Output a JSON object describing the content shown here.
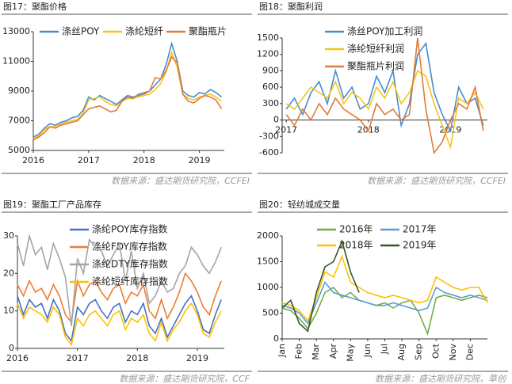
{
  "chart_data": [
    {
      "type": "line",
      "title": "图17：聚酯价格",
      "source": "数据来源：盛达期货研究院，CCFEI",
      "x": [
        2016.0,
        2016.1,
        2016.2,
        2016.3,
        2016.4,
        2016.5,
        2016.6,
        2016.7,
        2016.8,
        2016.9,
        2017.0,
        2017.1,
        2017.2,
        2017.3,
        2017.4,
        2017.5,
        2017.6,
        2017.7,
        2017.8,
        2017.9,
        2018.0,
        2018.1,
        2018.2,
        2018.3,
        2018.4,
        2018.5,
        2018.6,
        2018.7,
        2018.8,
        2018.9,
        2019.0,
        2019.1,
        2019.2,
        2019.3,
        2019.4
      ],
      "xlim": [
        2016.0,
        2019.45
      ],
      "xticks": [
        2016,
        2017,
        2018,
        2019
      ],
      "ylim": [
        5000,
        13000
      ],
      "yticks": [
        5000,
        7000,
        9000,
        11000,
        13000
      ],
      "series": [
        {
          "name": "涤丝POY",
          "color": "#4a8bd0",
          "values": [
            5900,
            6100,
            6500,
            6800,
            6700,
            6900,
            7000,
            7200,
            7300,
            7700,
            8600,
            8400,
            8700,
            8500,
            8300,
            8100,
            8400,
            8700,
            8600,
            8700,
            8800,
            9000,
            9400,
            9800,
            10800,
            12200,
            11000,
            9000,
            8700,
            8600,
            8900,
            8800,
            9100,
            8900,
            8600
          ]
        },
        {
          "name": "涤纶短纤",
          "color": "#f5c518",
          "values": [
            5800,
            6000,
            6400,
            6600,
            6600,
            6800,
            6900,
            7000,
            7100,
            7500,
            8400,
            8500,
            8600,
            8300,
            8100,
            8000,
            8300,
            8500,
            8500,
            8600,
            8700,
            8800,
            9100,
            9500,
            10300,
            11600,
            10600,
            8800,
            8500,
            8400,
            8600,
            8700,
            8800,
            8600,
            8300
          ]
        },
        {
          "name": "聚酯瓶片",
          "color": "#e07b39",
          "values": [
            5700,
            5900,
            6200,
            6600,
            6500,
            6700,
            6800,
            6900,
            7000,
            7400,
            7800,
            7900,
            8000,
            7800,
            7600,
            7700,
            8300,
            8600,
            8500,
            8800,
            8900,
            9000,
            9900,
            9800,
            10400,
            11300,
            10900,
            8800,
            8300,
            8200,
            8500,
            8700,
            8600,
            8400,
            7800
          ]
        }
      ]
    },
    {
      "type": "line",
      "title": "图18：聚酯利润",
      "source": "数据来源：盛达期货研究院，CCFEI",
      "x": [
        2017.0,
        2017.1,
        2017.2,
        2017.3,
        2017.4,
        2017.5,
        2017.6,
        2017.7,
        2017.8,
        2017.9,
        2018.0,
        2018.1,
        2018.2,
        2018.3,
        2018.4,
        2018.5,
        2018.6,
        2018.7,
        2018.8,
        2018.9,
        2019.0,
        2019.1,
        2019.2,
        2019.3,
        2019.4
      ],
      "xlim": [
        2016.95,
        2019.45
      ],
      "xticks": [
        2017,
        2018,
        2019
      ],
      "ylim": [
        -600,
        1500
      ],
      "yticks": [
        -600,
        -300,
        0,
        300,
        600,
        900,
        1200,
        1500
      ],
      "series": [
        {
          "name": "涤丝POY加工利润",
          "color": "#4a8bd0",
          "values": [
            200,
            400,
            100,
            500,
            700,
            300,
            900,
            400,
            600,
            200,
            300,
            800,
            500,
            900,
            -100,
            300,
            1200,
            1400,
            500,
            100,
            -200,
            600,
            300,
            400,
            -100
          ]
        },
        {
          "name": "涤纶短纤利润",
          "color": "#f5c518",
          "values": [
            300,
            200,
            400,
            600,
            500,
            400,
            700,
            300,
            500,
            400,
            200,
            600,
            400,
            700,
            300,
            500,
            900,
            800,
            300,
            -100,
            -500,
            400,
            300,
            500,
            200
          ]
        },
        {
          "name": "聚酯瓶片利润",
          "color": "#e07b39",
          "values": [
            100,
            -100,
            200,
            0,
            300,
            100,
            400,
            200,
            100,
            0,
            -200,
            300,
            100,
            200,
            0,
            100,
            1500,
            200,
            -600,
            -400,
            0,
            300,
            200,
            600,
            -200
          ]
        }
      ]
    },
    {
      "type": "line",
      "title": "图19：聚酯工厂产品库存",
      "source": "数据来源：盛达期货研究院，CCF",
      "x": [
        2016.0,
        2016.1,
        2016.2,
        2016.3,
        2016.4,
        2016.5,
        2016.6,
        2016.7,
        2016.8,
        2016.9,
        2017.0,
        2017.1,
        2017.2,
        2017.3,
        2017.4,
        2017.5,
        2017.6,
        2017.7,
        2017.8,
        2017.9,
        2018.0,
        2018.1,
        2018.2,
        2018.3,
        2018.4,
        2018.5,
        2018.6,
        2018.7,
        2018.8,
        2018.9,
        2019.0,
        2019.1,
        2019.2,
        2019.3,
        2019.4
      ],
      "xlim": [
        2016.0,
        2019.45
      ],
      "xticks": [
        2016,
        2017,
        2018,
        2019
      ],
      "ylim": [
        0,
        30
      ],
      "yticks": [
        0,
        10,
        20,
        30
      ],
      "series": [
        {
          "name": "涤纶POY库存指数",
          "color": "#4472c4",
          "values": [
            14,
            9,
            13,
            11,
            12,
            8,
            13,
            10,
            4,
            2,
            11,
            9,
            12,
            13,
            10,
            8,
            11,
            12,
            7,
            10,
            9,
            12,
            6,
            4,
            8,
            3,
            6,
            9,
            12,
            14,
            10,
            5,
            4,
            9,
            13
          ]
        },
        {
          "name": "涤纶FDY库存指数",
          "color": "#ed7d31",
          "values": [
            17,
            14,
            18,
            15,
            16,
            13,
            17,
            14,
            9,
            7,
            18,
            14,
            17,
            18,
            15,
            13,
            16,
            17,
            12,
            15,
            14,
            17,
            10,
            8,
            13,
            8,
            11,
            15,
            20,
            18,
            15,
            11,
            9,
            14,
            18
          ]
        },
        {
          "name": "涤纶DTY库存指数",
          "color": "#a5a5a5",
          "values": [
            28,
            22,
            30,
            25,
            27,
            21,
            28,
            24,
            19,
            6,
            24,
            20,
            29,
            27,
            26,
            22,
            25,
            28,
            18,
            26,
            16,
            20,
            12,
            14,
            18,
            15,
            16,
            20,
            22,
            27,
            25,
            22,
            20,
            23,
            27
          ]
        },
        {
          "name": "涤纶短纤库存指数",
          "color": "#ffc000",
          "values": [
            12,
            8,
            11,
            10,
            9,
            7,
            11,
            9,
            3,
            1,
            8,
            6,
            9,
            10,
            8,
            6,
            9,
            10,
            5,
            8,
            7,
            9,
            4,
            2,
            7,
            2,
            5,
            7,
            10,
            12,
            9,
            4,
            3,
            7,
            10
          ]
        }
      ]
    },
    {
      "type": "line",
      "title": "图20：轻纺城成交量",
      "source": "数据来源：盛达期货研究院，草创",
      "x": [
        0,
        0.5,
        1,
        1.5,
        2,
        2.5,
        3,
        3.5,
        4,
        4.5,
        5,
        5.5,
        6,
        6.5,
        7,
        7.5,
        8,
        8.5,
        9,
        9.5,
        10,
        10.5,
        11,
        11.5,
        12
      ],
      "xlim": [
        0,
        12
      ],
      "xticks": [
        {
          "value": 0,
          "label": "Jan"
        },
        {
          "value": 1,
          "label": "Feb"
        },
        {
          "value": 2,
          "label": "Mar"
        },
        {
          "value": 3,
          "label": "Apr"
        },
        {
          "value": 4,
          "label": "May"
        },
        {
          "value": 5,
          "label": "Jun"
        },
        {
          "value": 6,
          "label": "Jul"
        },
        {
          "value": 7,
          "label": "Aug"
        },
        {
          "value": 8,
          "label": "Sep"
        },
        {
          "value": 9,
          "label": "Oct"
        },
        {
          "value": 10,
          "label": "Nov"
        },
        {
          "value": 11,
          "label": "Dec"
        }
      ],
      "ylim": [
        0,
        2000
      ],
      "yticks": [
        0,
        500,
        1000,
        1500,
        2000
      ],
      "series": [
        {
          "name": "2016年",
          "color": "#70ad47",
          "values": [
            600,
            550,
            400,
            200,
            500,
            900,
            1000,
            800,
            900,
            750,
            700,
            650,
            700,
            600,
            700,
            750,
            500,
            100,
            800,
            850,
            800,
            750,
            800,
            850,
            800
          ]
        },
        {
          "name": "2017年",
          "color": "#5b9bd5",
          "values": [
            650,
            600,
            500,
            300,
            700,
            1100,
            900,
            850,
            800,
            750,
            700,
            650,
            650,
            700,
            650,
            600,
            550,
            600,
            1000,
            900,
            850,
            800,
            850,
            800,
            750
          ]
        },
        {
          "name": "2018年",
          "color": "#ffc000",
          "values": [
            700,
            650,
            550,
            350,
            800,
            1300,
            1200,
            1600,
            1100,
            1000,
            900,
            850,
            800,
            850,
            800,
            750,
            700,
            750,
            1200,
            1100,
            1000,
            950,
            1000,
            1000,
            700
          ]
        },
        {
          "name": "2019年",
          "color": "#375623",
          "values": [
            600,
            750,
            300,
            150,
            900,
            1400,
            1500,
            1900,
            1300,
            900,
            null,
            null,
            null,
            null,
            null,
            null,
            null,
            null,
            null,
            null,
            null,
            null,
            null,
            null,
            null
          ]
        }
      ]
    }
  ]
}
